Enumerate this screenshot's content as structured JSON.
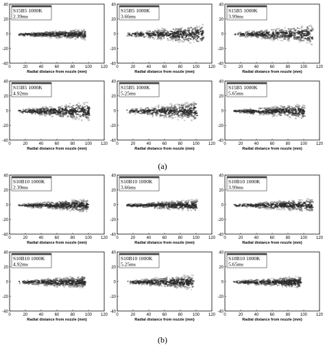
{
  "captions": {
    "a": "(a)",
    "b": "(b)"
  },
  "axis": {
    "x_label": "Radial distance from nozzle (mm)",
    "x_ticks": [
      "0",
      "20",
      "40",
      "60",
      "80",
      "100",
      "120"
    ],
    "y_ticks": [
      "40",
      "20",
      "0",
      "-20",
      "-40"
    ]
  },
  "panels": [
    {
      "id": "a1",
      "fuel": "S15B5 1000K",
      "time": "2.39ms",
      "tip": 95,
      "width": 14
    },
    {
      "id": "a2",
      "fuel": "S15B5 1000K",
      "time": "3.66ms",
      "tip": 108,
      "width": 28
    },
    {
      "id": "a3",
      "fuel": "S15B5 1000K",
      "time": "3.99ms",
      "tip": 110,
      "width": 28
    },
    {
      "id": "a4",
      "fuel": "S15B5 1000K",
      "time": "4.92ms",
      "tip": 100,
      "width": 26
    },
    {
      "id": "a5",
      "fuel": "S15B5 1000K",
      "time": "5.25ms",
      "tip": 100,
      "width": 28
    },
    {
      "id": "a6",
      "fuel": "S15B5 1000K",
      "time": "5.65ms",
      "tip": 100,
      "width": 20
    },
    {
      "id": "b1",
      "fuel": "S10B10 1000K",
      "time": "2.39ms",
      "tip": 98,
      "width": 18
    },
    {
      "id": "b2",
      "fuel": "S10B10 1000K",
      "time": "3.66ms",
      "tip": 100,
      "width": 16
    },
    {
      "id": "b3",
      "fuel": "S10B10 1000K",
      "time": "3.99ms",
      "tip": 110,
      "width": 18
    },
    {
      "id": "b4",
      "fuel": "S10B10 1000K",
      "time": "4.92ms",
      "tip": 95,
      "width": 18
    },
    {
      "id": "b5",
      "fuel": "S10B10 1000K",
      "time": "5.25ms",
      "tip": 95,
      "width": 20
    },
    {
      "id": "b6",
      "fuel": "S10B10 1000K",
      "time": "5.65ms",
      "tip": 95,
      "width": 16
    }
  ],
  "colors": {
    "frame": "#000000",
    "spray_dark": "#2b2b2b",
    "spray_mid": "#6e6e6e",
    "spray_light": "#b5b5b5"
  }
}
